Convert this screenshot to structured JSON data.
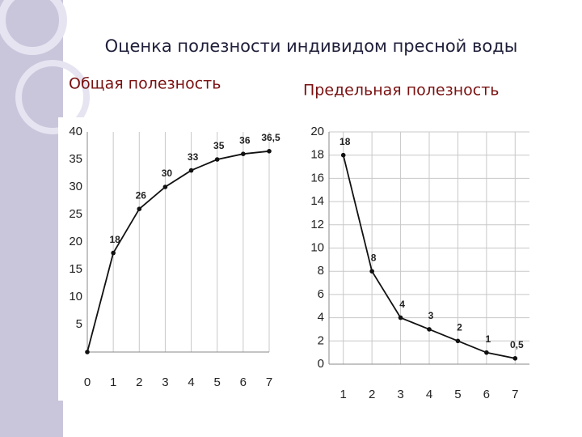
{
  "title": "Оценка полезности индивидом пресной воды",
  "chart_data": [
    {
      "type": "line",
      "title": "Общая полезность",
      "x": [
        0,
        1,
        2,
        3,
        4,
        5,
        6,
        7
      ],
      "values": [
        0,
        18,
        26,
        30,
        33,
        35,
        36,
        36.5
      ],
      "value_labels": [
        null,
        "18",
        "26",
        "30",
        "33",
        "35",
        "36",
        "36,5"
      ],
      "color": "#111111",
      "xlim": [
        0,
        7
      ],
      "xticks": [
        0,
        1,
        2,
        3,
        4,
        5,
        6,
        7
      ],
      "ylim": [
        0,
        40
      ],
      "yticks": [
        5,
        10,
        15,
        20,
        25,
        30,
        35,
        40
      ],
      "grid": "x"
    },
    {
      "type": "line",
      "title": "Предельная полезность",
      "x": [
        1,
        2,
        3,
        4,
        5,
        6,
        7
      ],
      "values": [
        18,
        8,
        4,
        3,
        2,
        1,
        0.5
      ],
      "value_labels": [
        "18",
        "8",
        "4",
        "3",
        "2",
        "1",
        "0,5"
      ],
      "color": "#111111",
      "xlim": [
        0.5,
        7.5
      ],
      "xticks": [
        1,
        2,
        3,
        4,
        5,
        6,
        7
      ],
      "ylim": [
        0,
        20
      ],
      "yticks": [
        0,
        2,
        4,
        6,
        8,
        10,
        12,
        14,
        16,
        18,
        20
      ],
      "grid": "both"
    }
  ]
}
